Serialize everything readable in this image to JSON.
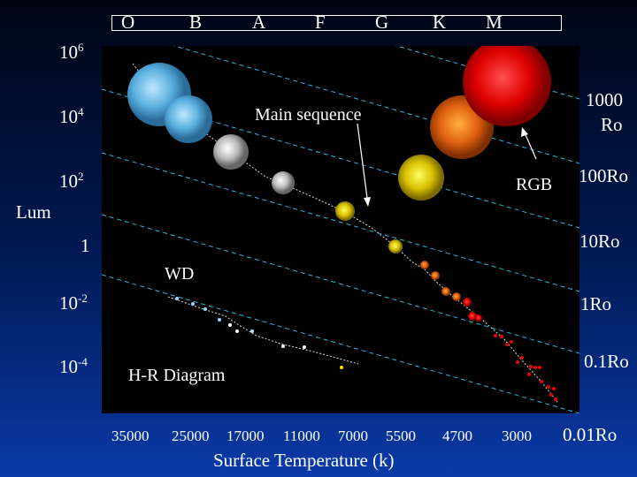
{
  "spectral_classes": [
    "O",
    "B",
    "A",
    "F",
    "G",
    "K",
    "M"
  ],
  "luminosity_label": "Lum",
  "luminosity_ticks": [
    {
      "base": "10",
      "exp": "6"
    },
    {
      "base": "10",
      "exp": "4"
    },
    {
      "base": "10",
      "exp": "2"
    },
    {
      "base": "1",
      "exp": ""
    },
    {
      "base": "10",
      "exp": "-2"
    },
    {
      "base": "10",
      "exp": "-4"
    }
  ],
  "radius_labels": [
    "1000",
    "Ro",
    "100Ro",
    "10Ro",
    "1Ro",
    "0.1Ro",
    "0.01Ro"
  ],
  "temperature_ticks": [
    "35000",
    "25000",
    "17000",
    "11000",
    "7000",
    "5500",
    "4700",
    "3000"
  ],
  "x_axis_label": "Surface Temperature (k)",
  "annotations": {
    "main_sequence": "Main sequence",
    "rgb": "RGB",
    "wd": "WD",
    "title": "H-R Diagram"
  },
  "colors": {
    "plot_bg": "#000000",
    "radius_lines": "#2ab8d8"
  }
}
